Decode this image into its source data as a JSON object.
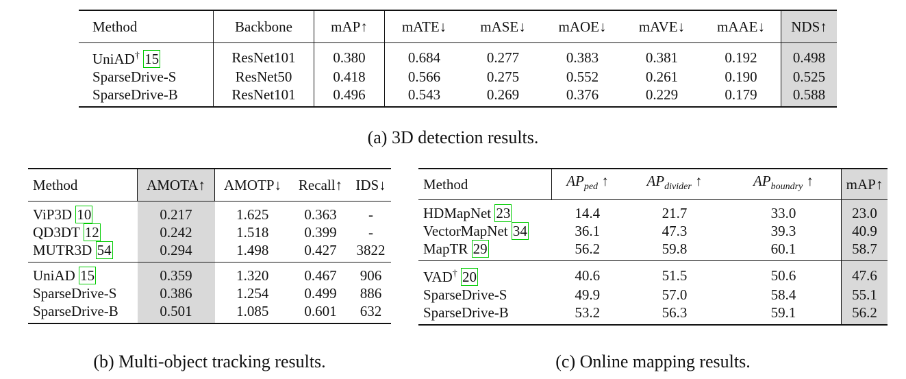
{
  "table_a": {
    "headers": [
      "Method",
      "Backbone",
      "mAP↑",
      "mATE↓",
      "mASE↓",
      "mAOE↓",
      "mAVE↓",
      "mAAE↓",
      "NDS↑"
    ],
    "rows": [
      {
        "method": "UniAD",
        "dagger": "†",
        "cite": "15",
        "backbone": "ResNet101",
        "vals": [
          "0.380",
          "0.684",
          "0.277",
          "0.383",
          "0.381",
          "0.192",
          "0.498"
        ]
      },
      {
        "method": "SparseDrive-S",
        "backbone": "ResNet50",
        "vals": [
          "0.418",
          "0.566",
          "0.275",
          "0.552",
          "0.261",
          "0.190",
          "0.525"
        ]
      },
      {
        "method": "SparseDrive-B",
        "backbone": "ResNet101",
        "vals": [
          "0.496",
          "0.543",
          "0.269",
          "0.376",
          "0.229",
          "0.179",
          "0.588"
        ]
      }
    ],
    "caption": "(a) 3D detection results."
  },
  "table_b": {
    "headers": [
      "Method",
      "AMOTA↑",
      "AMOTP↓",
      "Recall↑",
      "IDS↓"
    ],
    "rows": [
      {
        "method": "ViP3D",
        "cite": "10",
        "vals": [
          "0.217",
          "1.625",
          "0.363",
          "-"
        ]
      },
      {
        "method": "QD3DT",
        "cite": "12",
        "vals": [
          "0.242",
          "1.518",
          "0.399",
          "-"
        ]
      },
      {
        "method": "MUTR3D",
        "cite": "54",
        "vals": [
          "0.294",
          "1.498",
          "0.427",
          "3822"
        ]
      },
      {
        "method": "UniAD",
        "cite": "15",
        "vals": [
          "0.359",
          "1.320",
          "0.467",
          "906"
        ]
      },
      {
        "method": "SparseDrive-S",
        "vals": [
          "0.386",
          "1.254",
          "0.499",
          "886"
        ]
      },
      {
        "method": "SparseDrive-B",
        "vals": [
          "0.501",
          "1.085",
          "0.601",
          "632"
        ]
      }
    ],
    "caption": "(b) Multi-object tracking results."
  },
  "table_c": {
    "headers": {
      "method": "Method",
      "ap": "AP",
      "sub_ped": "ped",
      "sub_divider": "divider",
      "sub_boundry": "boundry",
      "arrow": "↑",
      "map": "mAP↑"
    },
    "rows": [
      {
        "method": "HDMapNet",
        "cite": "23",
        "vals": [
          "14.4",
          "21.7",
          "33.0",
          "23.0"
        ]
      },
      {
        "method": "VectorMapNet",
        "cite": "34",
        "vals": [
          "36.1",
          "47.3",
          "39.3",
          "40.9"
        ]
      },
      {
        "method": "MapTR",
        "cite": "29",
        "vals": [
          "56.2",
          "59.8",
          "60.1",
          "58.7"
        ]
      },
      {
        "method": "VAD",
        "dagger": "†",
        "cite": "20",
        "vals": [
          "40.6",
          "51.5",
          "50.6",
          "47.6"
        ]
      },
      {
        "method": "SparseDrive-S",
        "vals": [
          "49.9",
          "57.0",
          "58.4",
          "55.1"
        ]
      },
      {
        "method": "SparseDrive-B",
        "vals": [
          "53.2",
          "56.3",
          "59.1",
          "56.2"
        ]
      }
    ],
    "caption": "(c) Online mapping results."
  }
}
